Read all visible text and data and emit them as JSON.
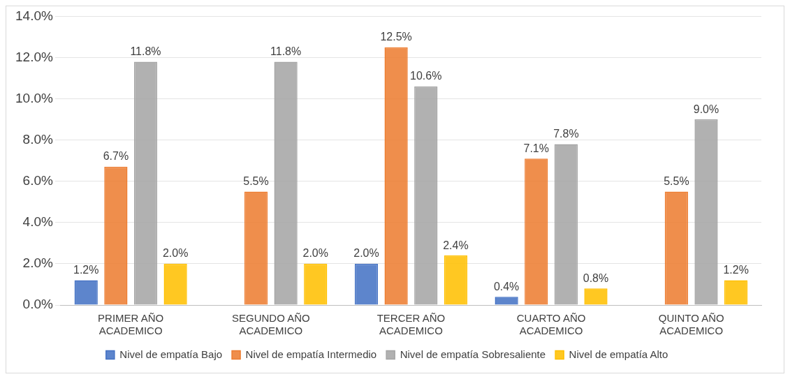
{
  "chart_data": {
    "type": "bar",
    "categories": [
      "PRIMER AÑO ACADEMICO",
      "SEGUNDO AÑO ACADEMICO",
      "TERCER AÑO ACADEMICO",
      "CUARTO AÑO ACADEMICO",
      "QUINTO AÑO ACADEMICO"
    ],
    "series": [
      {
        "name": "Nivel de empatía Bajo",
        "color": "#4472c4",
        "values": [
          1.2,
          null,
          2.0,
          0.4,
          null
        ],
        "value_labels": [
          "1.2%",
          null,
          "2.0%",
          "0.4%",
          null
        ]
      },
      {
        "name": "Nivel de empatía Intermedio",
        "color": "#ed7d31",
        "values": [
          6.7,
          5.5,
          12.5,
          7.1,
          5.5
        ],
        "value_labels": [
          "6.7%",
          "5.5%",
          "12.5%",
          "7.1%",
          "5.5%"
        ]
      },
      {
        "name": "Nivel de empatía Sobresaliente",
        "color": "#a5a5a5",
        "values": [
          11.8,
          11.8,
          10.6,
          7.8,
          9.0
        ],
        "value_labels": [
          "11.8%",
          "11.8%",
          "10.6%",
          "7.8%",
          "9.0%"
        ]
      },
      {
        "name": "Nivel de empatía Alto",
        "color": "#ffc000",
        "values": [
          2.0,
          2.0,
          2.4,
          0.8,
          1.2
        ],
        "value_labels": [
          "2.0%",
          "2.0%",
          "2.4%",
          "0.8%",
          "1.2%"
        ]
      }
    ],
    "ylim": [
      0,
      14
    ],
    "yticks": [
      {
        "value": 0,
        "label": "0.0%"
      },
      {
        "value": 2,
        "label": "2.0%"
      },
      {
        "value": 4,
        "label": "4.0%"
      },
      {
        "value": 6,
        "label": "6.0%"
      },
      {
        "value": 8,
        "label": "8.0%"
      },
      {
        "value": 10,
        "label": "10.0%"
      },
      {
        "value": 12,
        "label": "12.0%"
      },
      {
        "value": 14,
        "label": "14.0%"
      }
    ],
    "grid": "y",
    "legend": "bottom"
  }
}
